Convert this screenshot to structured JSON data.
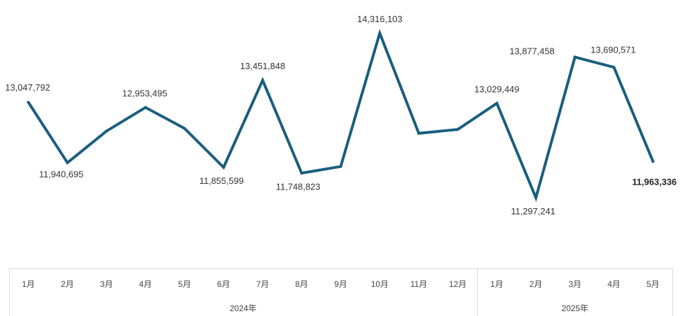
{
  "chart_data": {
    "type": "line",
    "title": "",
    "xlabel": "",
    "ylabel": "",
    "grid": false,
    "legend": "none",
    "groups": [
      {
        "label": "2024年",
        "categories": [
          "1月",
          "2月",
          "3月",
          "4月",
          "5月",
          "6月",
          "7月",
          "8月",
          "9月",
          "10月",
          "11月",
          "12月"
        ]
      },
      {
        "label": "2025年",
        "categories": [
          "1月",
          "2月",
          "3月",
          "4月",
          "5月"
        ]
      }
    ],
    "categories": [
      "1月",
      "2月",
      "3月",
      "4月",
      "5月",
      "6月",
      "7月",
      "8月",
      "9月",
      "10月",
      "11月",
      "12月",
      "1月",
      "2月",
      "3月",
      "4月",
      "5月"
    ],
    "series": [
      {
        "color": "#1a5e7e",
        "values": [
          13047792,
          11940695,
          12520000,
          12953495,
          12570000,
          11855599,
          13451848,
          11748823,
          11870000,
          14316103,
          12480000,
          12550000,
          13029449,
          11297241,
          13877458,
          13690571,
          11963336
        ],
        "data_labels": [
          "13,047,792",
          "11,940,695",
          "",
          "12,953,495",
          "",
          "11,855,599",
          "13,451,848",
          "11,748,823",
          "",
          "14,316,103",
          "",
          "",
          "13,029,449",
          "11,297,241",
          "13,877,458",
          "13,690,571",
          "11,963,336"
        ]
      }
    ]
  }
}
